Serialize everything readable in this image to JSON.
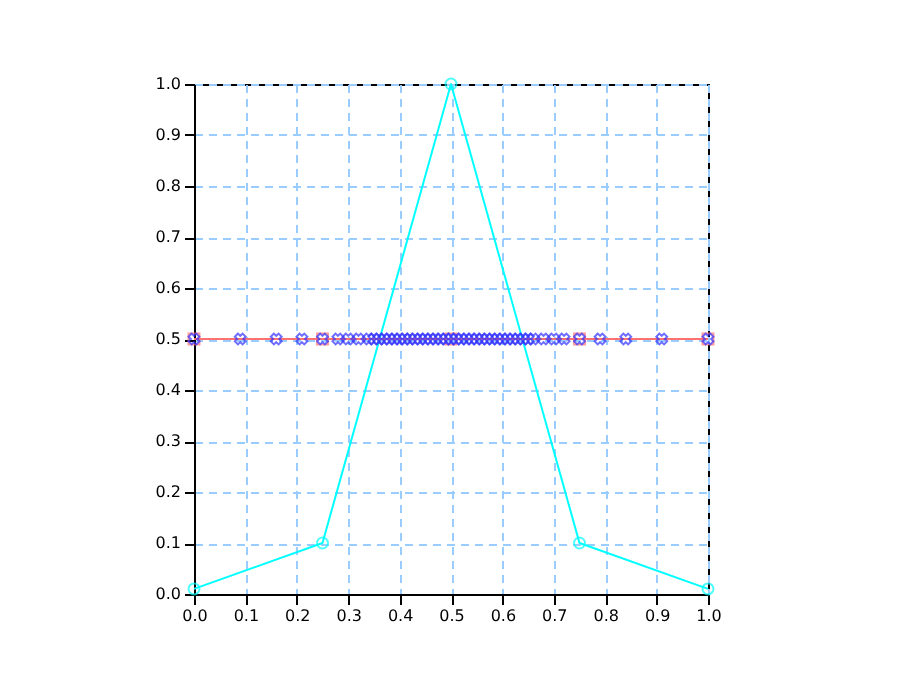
{
  "chart_data": {
    "type": "line",
    "xlim": [
      0,
      1
    ],
    "ylim": [
      0,
      1
    ],
    "xticks": [
      {
        "value": 0,
        "label": "0.0"
      },
      0.1,
      0.2,
      0.3,
      0.4,
      0.5,
      0.6,
      0.7,
      0.8,
      0.9,
      {
        "value": 1,
        "label": "1.0"
      }
    ],
    "yticks": [
      {
        "value": 0,
        "label": "0.0"
      },
      0.1,
      0.2,
      0.3,
      0.4,
      0.5,
      0.6,
      0.7,
      0.8,
      0.9,
      {
        "value": 1,
        "label": "1.0"
      }
    ],
    "grid": true,
    "series": [
      {
        "color": "#00ffff",
        "marker": "circle",
        "x": [
          0,
          0.25,
          0.5,
          0.75,
          1
        ],
        "values": [
          0.01,
          0.1,
          1,
          0.1,
          0.01
        ]
      },
      {
        "color": "#ff7070",
        "marker": "square",
        "x": [
          0,
          0.25,
          0.5,
          0.75,
          1
        ],
        "values": [
          0.5,
          0.5,
          0.5,
          0.5,
          0.5
        ]
      },
      {
        "type": "scatter",
        "color": "#3030ff",
        "marker": "cross",
        "x": [
          0,
          0.09,
          0.16,
          0.21,
          0.25,
          0.28,
          0.3,
          0.32,
          0.34,
          0.35,
          0.36,
          0.37,
          0.38,
          0.39,
          0.4,
          0.41,
          0.42,
          0.43,
          0.44,
          0.45,
          0.46,
          0.47,
          0.48,
          0.49,
          0.5,
          0.51,
          0.52,
          0.53,
          0.54,
          0.55,
          0.56,
          0.57,
          0.58,
          0.59,
          0.6,
          0.61,
          0.62,
          0.63,
          0.64,
          0.65,
          0.66,
          0.68,
          0.7,
          0.72,
          0.75,
          0.79,
          0.84,
          0.91,
          1
        ],
        "values": [
          0.5,
          0.5,
          0.5,
          0.5,
          0.5,
          0.5,
          0.5,
          0.5,
          0.5,
          0.5,
          0.5,
          0.5,
          0.5,
          0.5,
          0.5,
          0.5,
          0.5,
          0.5,
          0.5,
          0.5,
          0.5,
          0.5,
          0.5,
          0.5,
          0.5,
          0.5,
          0.5,
          0.5,
          0.5,
          0.5,
          0.5,
          0.5,
          0.5,
          0.5,
          0.5,
          0.5,
          0.5,
          0.5,
          0.5,
          0.5,
          0.5,
          0.5,
          0.5,
          0.5,
          0.5,
          0.5,
          0.5,
          0.5,
          0.5
        ]
      }
    ]
  }
}
